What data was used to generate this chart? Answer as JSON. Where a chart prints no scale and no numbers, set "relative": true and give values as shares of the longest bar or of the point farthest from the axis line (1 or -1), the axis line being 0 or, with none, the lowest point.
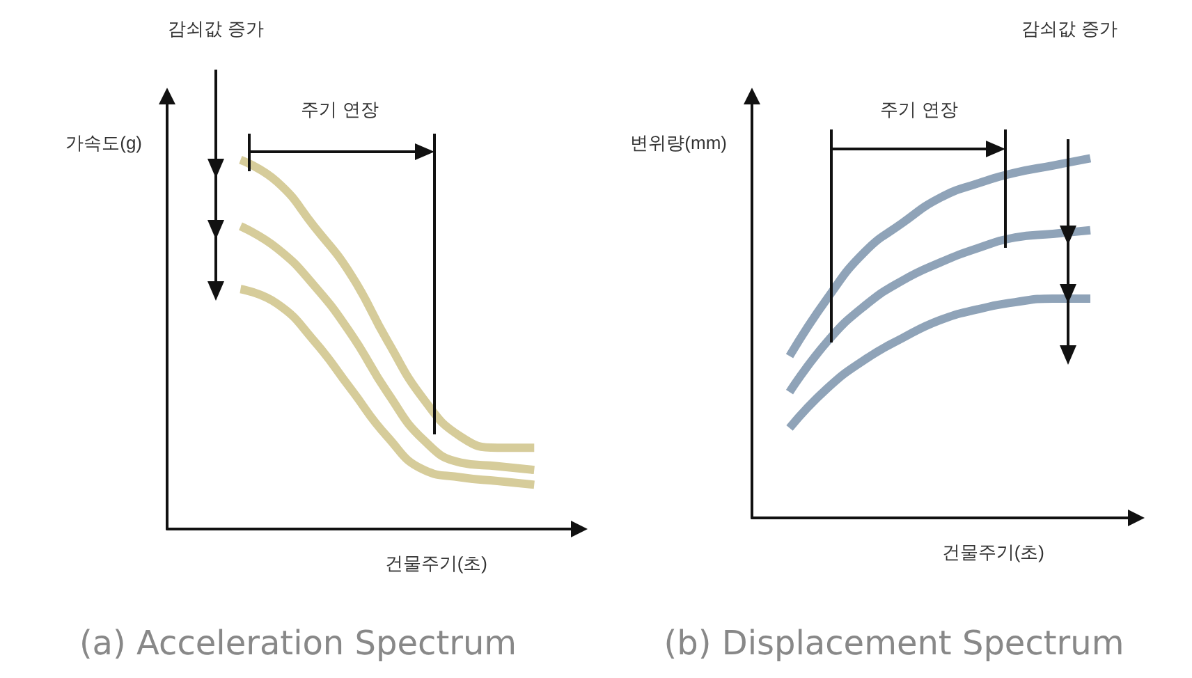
{
  "chart_data": [
    {
      "type": "line",
      "title": "(a) Acceleration Spectrum",
      "xlabel": "건물주기(초)",
      "ylabel": "가속도(g)",
      "relative": true,
      "marker": "none",
      "categories": [
        null,
        null,
        null,
        null,
        null,
        null,
        null,
        null,
        null,
        null,
        null,
        null
      ],
      "annotations": [
        "감쇠값 증가",
        "주기 연장"
      ],
      "series": [
        {
          "color": "#d6cc9a",
          "values": [
            null,
            null,
            1,
            0.94,
            0.82,
            0.69,
            0.51,
            0.35,
            0.25,
            0.22,
            0.22,
            null
          ]
        },
        {
          "color": "#d6cc9a",
          "values": [
            null,
            null,
            0.82,
            0.76,
            0.66,
            0.53,
            0.37,
            0.24,
            0.18,
            0.17,
            0.16,
            null
          ]
        },
        {
          "color": "#d6cc9a",
          "values": [
            null,
            null,
            0.65,
            0.61,
            0.51,
            0.38,
            0.25,
            0.16,
            0.14,
            0.13,
            0.12,
            null
          ]
        }
      ]
    },
    {
      "type": "line",
      "title": "(b) Displacement Spectrum",
      "xlabel": "건물주기(초)",
      "ylabel": "변위량(mm)",
      "relative": true,
      "marker": "none",
      "categories": [
        null,
        null,
        null,
        null,
        null,
        null,
        null,
        null,
        null,
        null,
        null
      ],
      "annotations": [
        "주기 연장",
        "감쇠값 증가"
      ],
      "series": [
        {
          "color": "#8fa3b8",
          "values": [
            null,
            0.45,
            0.61,
            0.74,
            0.82,
            0.89,
            0.93,
            0.96,
            0.98,
            1,
            null
          ]
        },
        {
          "color": "#8fa3b8",
          "values": [
            null,
            0.35,
            0.49,
            0.59,
            0.66,
            0.71,
            0.75,
            0.78,
            0.79,
            0.8,
            null
          ]
        },
        {
          "color": "#8fa3b8",
          "values": [
            null,
            0.25,
            0.36,
            0.44,
            0.5,
            0.55,
            0.58,
            0.6,
            0.61,
            0.61,
            null
          ]
        }
      ]
    }
  ]
}
